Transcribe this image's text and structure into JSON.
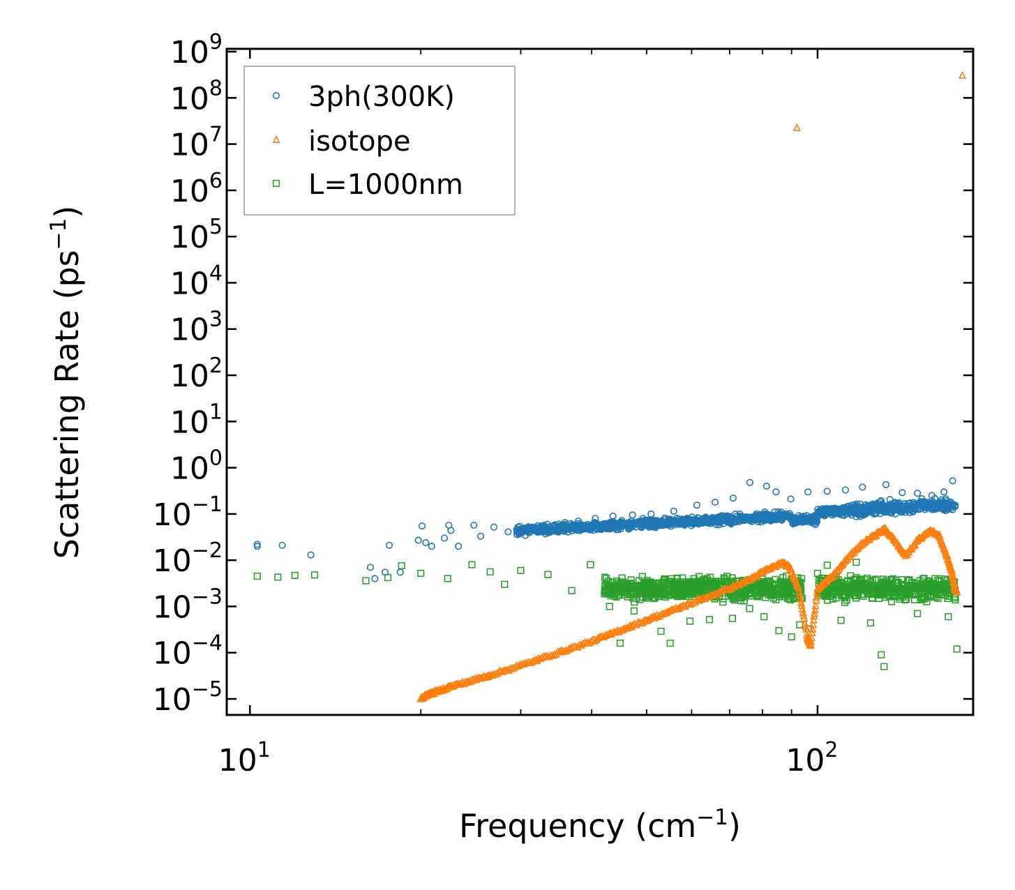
{
  "chart_data": {
    "type": "scatter",
    "title": "",
    "xlabel": {
      "text": "Frequency (cm",
      "sup": "−1",
      "close": ")"
    },
    "ylabel": {
      "text": "Scattering Rate (ps",
      "sup": "−1",
      "close": ")"
    },
    "xscale": "log",
    "yscale": "log",
    "xlim": [
      9.1,
      188
    ],
    "ylim": [
      4.5e-06,
      1150000000.0
    ],
    "x_ticks": [
      {
        "value": 10,
        "base": "10",
        "exp": "1"
      },
      {
        "value": 100,
        "base": "10",
        "exp": "2"
      }
    ],
    "y_ticks": [
      {
        "value": 1e-05,
        "base": "10",
        "exp": "−5"
      },
      {
        "value": 0.0001,
        "base": "10",
        "exp": "−4"
      },
      {
        "value": 0.001,
        "base": "10",
        "exp": "−3"
      },
      {
        "value": 0.01,
        "base": "10",
        "exp": "−2"
      },
      {
        "value": 0.1,
        "base": "10",
        "exp": "−1"
      },
      {
        "value": 1.0,
        "base": "10",
        "exp": "0"
      },
      {
        "value": 10.0,
        "base": "10",
        "exp": "1"
      },
      {
        "value": 100.0,
        "base": "10",
        "exp": "2"
      },
      {
        "value": 1000.0,
        "base": "10",
        "exp": "3"
      },
      {
        "value": 10000.0,
        "base": "10",
        "exp": "4"
      },
      {
        "value": 100000.0,
        "base": "10",
        "exp": "5"
      },
      {
        "value": 1000000.0,
        "base": "10",
        "exp": "6"
      },
      {
        "value": 10000000.0,
        "base": "10",
        "exp": "7"
      },
      {
        "value": 100000000.0,
        "base": "10",
        "exp": "8"
      },
      {
        "value": 1000000000.0,
        "base": "10",
        "exp": "9"
      }
    ],
    "legend_position": "top-left",
    "series": [
      {
        "name": "3ph(300K)",
        "marker": "circle",
        "color": "#1f77b4",
        "points": [
          [
            10.3,
            0.022
          ],
          [
            10.3,
            0.02
          ],
          [
            11.4,
            0.021
          ],
          [
            12.8,
            0.013
          ],
          [
            16.3,
            0.007
          ],
          [
            16.6,
            0.004
          ],
          [
            17.3,
            0.0055
          ],
          [
            17.6,
            0.021
          ],
          [
            18.4,
            0.0055
          ],
          [
            19.8,
            0.027
          ],
          [
            20.1,
            0.055
          ],
          [
            20.4,
            0.024
          ],
          [
            20.9,
            0.02
          ],
          [
            22.0,
            0.03
          ],
          [
            22.4,
            0.057
          ],
          [
            22.6,
            0.044
          ],
          [
            23.3,
            0.02
          ],
          [
            24.8,
            0.057
          ],
          [
            25.5,
            0.033
          ],
          [
            26.9,
            0.052
          ],
          [
            28.5,
            0.041
          ],
          [
            30.1,
            0.04
          ],
          [
            31.5,
            0.052
          ],
          [
            33.4,
            0.06
          ],
          [
            35.9,
            0.065
          ],
          [
            37.9,
            0.07
          ],
          [
            40.6,
            0.08
          ],
          [
            43.6,
            0.09
          ],
          [
            47.2,
            0.095
          ],
          [
            50.9,
            0.1
          ],
          [
            55.8,
            0.115
          ],
          [
            61.3,
            0.155
          ],
          [
            66.0,
            0.18
          ],
          [
            71.0,
            0.22
          ],
          [
            76.0,
            0.48
          ],
          [
            81.3,
            0.4
          ],
          [
            84.5,
            0.3
          ],
          [
            89.7,
            0.21
          ],
          [
            96.2,
            0.3
          ],
          [
            104.0,
            0.31
          ],
          [
            112.0,
            0.33
          ],
          [
            120.0,
            0.38
          ],
          [
            132.0,
            0.43
          ],
          [
            141.0,
            0.29
          ],
          [
            150.0,
            0.28
          ],
          [
            159.0,
            0.25
          ],
          [
            167.0,
            0.3
          ],
          [
            173.0,
            0.52
          ]
        ],
        "band": {
          "x_start": 29.5,
          "x_end": 175.0,
          "count": 1400,
          "center_log_left": -1.36,
          "center_log_right": -0.85,
          "spread_log": 0.18
        }
      },
      {
        "name": "isotope",
        "marker": "triangle",
        "color": "#ff7f0e",
        "points": [
          [
            20.0,
            1e-05
          ],
          [
            20.5,
            1.2e-05
          ],
          [
            21.3,
            1.4e-05
          ],
          [
            22.5,
            1.8e-05
          ],
          [
            24.2,
            2.3e-05
          ],
          [
            26.3,
            3.1e-05
          ],
          [
            28.8,
            4.4e-05
          ],
          [
            32.0,
            6.8e-05
          ],
          [
            35.4,
            0.000104
          ],
          [
            39.2,
            0.000158
          ],
          [
            43.1,
            0.000245
          ],
          [
            47.0,
            0.000372
          ],
          [
            51.7,
            0.00058
          ],
          [
            57.0,
            0.00091
          ],
          [
            62.5,
            0.00141
          ],
          [
            69.2,
            0.00229
          ],
          [
            75.9,
            0.00372
          ],
          [
            81.0,
            0.00589
          ],
          [
            86.5,
            0.0085
          ],
          [
            89.4,
            0.0069
          ],
          [
            92.6,
            0.00251
          ],
          [
            96.0,
            0.00021
          ],
          [
            97.2,
            0.00014
          ],
          [
            100.0,
            0.0024
          ],
          [
            106.0,
            0.00427
          ],
          [
            112.0,
            0.00955
          ],
          [
            119.0,
            0.0209
          ],
          [
            126.0,
            0.0339
          ],
          [
            131.5,
            0.0468
          ],
          [
            137.0,
            0.0257
          ],
          [
            143.0,
            0.0123
          ],
          [
            150.0,
            0.0263
          ],
          [
            158.0,
            0.0427
          ],
          [
            164.0,
            0.0331
          ],
          [
            168.5,
            0.0135
          ],
          [
            172.0,
            0.0063
          ],
          [
            174.5,
            0.0026
          ],
          [
            176.0,
            0.002
          ],
          [
            92.0,
            22000000
          ],
          [
            180.0,
            300000000
          ]
        ]
      },
      {
        "name": "L=1000nm",
        "marker": "square",
        "color": "#2ca02c",
        "points": [
          [
            10.3,
            0.0045
          ],
          [
            11.2,
            0.0043
          ],
          [
            12.0,
            0.0047
          ],
          [
            13.0,
            0.0048
          ],
          [
            16.0,
            0.0036
          ],
          [
            17.5,
            0.0042
          ],
          [
            18.5,
            0.0076
          ],
          [
            20.0,
            0.0052
          ],
          [
            22.3,
            0.004
          ],
          [
            24.6,
            0.008
          ],
          [
            26.5,
            0.0056
          ],
          [
            28.1,
            0.003
          ],
          [
            30.0,
            0.006
          ],
          [
            33.5,
            0.0049
          ],
          [
            36.9,
            0.0022
          ],
          [
            39.8,
            0.008
          ],
          [
            43.0,
            0.001
          ],
          [
            44.9,
            0.00016
          ],
          [
            47.5,
            0.0008
          ],
          [
            50.1,
            0.0005
          ],
          [
            53.0,
            0.00029
          ],
          [
            55.0,
            0.00016
          ],
          [
            59.6,
            0.00048
          ],
          [
            64.5,
            0.00052
          ],
          [
            70.8,
            0.00055
          ],
          [
            75.9,
            0.0009
          ],
          [
            80.5,
            0.0006
          ],
          [
            85.5,
            0.0003
          ],
          [
            90.0,
            0.00022
          ],
          [
            93.0,
            0.0004
          ],
          [
            96.5,
            0.00033
          ],
          [
            100.0,
            0.0052
          ],
          [
            104.0,
            0.0078
          ],
          [
            110.0,
            0.0005
          ],
          [
            117.0,
            0.009
          ],
          [
            124.0,
            0.00044
          ],
          [
            129.5,
            9e-05
          ],
          [
            131.0,
            5e-05
          ],
          [
            136.0,
            0.002
          ],
          [
            150.0,
            0.0007
          ],
          [
            163.0,
            0.0015
          ],
          [
            170.0,
            0.0006
          ],
          [
            176.0,
            0.00012
          ]
        ],
        "band": {
          "x_start": 42.0,
          "x_end": 175.0,
          "count": 1300,
          "center_log": -2.62,
          "spread_log": 0.33,
          "gap": [
            94.0,
            100.5
          ]
        }
      }
    ]
  }
}
